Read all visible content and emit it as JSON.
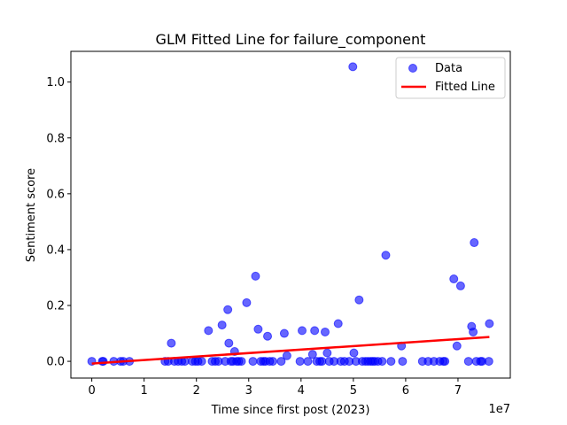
{
  "chart_data": {
    "type": "scatter",
    "title": "GLM Fitted Line for failure_component",
    "xlabel": "Time since first post (2023)",
    "ylabel": "Sentiment score",
    "x_offset_label": "1e7",
    "xlim": [
      -4000000,
      80000000
    ],
    "ylim": [
      -0.06,
      1.11
    ],
    "x_ticks": [
      0,
      10000000,
      20000000,
      30000000,
      40000000,
      50000000,
      60000000,
      70000000
    ],
    "x_tick_labels": [
      "0",
      "1",
      "2",
      "3",
      "4",
      "5",
      "6",
      "7"
    ],
    "y_ticks": [
      0.0,
      0.2,
      0.4,
      0.6,
      0.8,
      1.0
    ],
    "y_tick_labels": [
      "0.0",
      "0.2",
      "0.4",
      "0.6",
      "0.8",
      "1.0"
    ],
    "grid": false,
    "legend_position": "top-right",
    "series": [
      {
        "name": "Data",
        "kind": "scatter",
        "color": "#0000ff",
        "points": [
          [
            0,
            0.0
          ],
          [
            2000000,
            0.0
          ],
          [
            2200000,
            0.0
          ],
          [
            4200000,
            0.0
          ],
          [
            5500000,
            0.0
          ],
          [
            6000000,
            0.0
          ],
          [
            7200000,
            0.0
          ],
          [
            14000000,
            0.0
          ],
          [
            14600000,
            0.0
          ],
          [
            15200000,
            0.065
          ],
          [
            15800000,
            0.0
          ],
          [
            16500000,
            0.0
          ],
          [
            17200000,
            0.0
          ],
          [
            17800000,
            0.0
          ],
          [
            19200000,
            0.0
          ],
          [
            19800000,
            0.0
          ],
          [
            20300000,
            0.0
          ],
          [
            21000000,
            0.0
          ],
          [
            22300000,
            0.11
          ],
          [
            23000000,
            0.0
          ],
          [
            23600000,
            0.0
          ],
          [
            24200000,
            0.0
          ],
          [
            24900000,
            0.13
          ],
          [
            25500000,
            0.0
          ],
          [
            26000000,
            0.185
          ],
          [
            26200000,
            0.065
          ],
          [
            26600000,
            0.0
          ],
          [
            27000000,
            0.0
          ],
          [
            27300000,
            0.035
          ],
          [
            27700000,
            0.0
          ],
          [
            28100000,
            0.0
          ],
          [
            28600000,
            0.0
          ],
          [
            29600000,
            0.21
          ],
          [
            30800000,
            0.0
          ],
          [
            31300000,
            0.305
          ],
          [
            31800000,
            0.115
          ],
          [
            32300000,
            0.0
          ],
          [
            32800000,
            0.0
          ],
          [
            33200000,
            0.0
          ],
          [
            33600000,
            0.09
          ],
          [
            34000000,
            0.0
          ],
          [
            34600000,
            0.0
          ],
          [
            36200000,
            0.0
          ],
          [
            36800000,
            0.1
          ],
          [
            37300000,
            0.02
          ],
          [
            39800000,
            0.0
          ],
          [
            40200000,
            0.11
          ],
          [
            41300000,
            0.0
          ],
          [
            42200000,
            0.025
          ],
          [
            42600000,
            0.11
          ],
          [
            43000000,
            0.0
          ],
          [
            43600000,
            0.0
          ],
          [
            44000000,
            0.0
          ],
          [
            44600000,
            0.105
          ],
          [
            45000000,
            0.03
          ],
          [
            45400000,
            0.0
          ],
          [
            46300000,
            0.0
          ],
          [
            47100000,
            0.135
          ],
          [
            47600000,
            0.0
          ],
          [
            48300000,
            0.0
          ],
          [
            49200000,
            0.0
          ],
          [
            49900000,
            1.055
          ],
          [
            50100000,
            0.03
          ],
          [
            50500000,
            0.0
          ],
          [
            51100000,
            0.22
          ],
          [
            51700000,
            0.0
          ],
          [
            52300000,
            0.0
          ],
          [
            52800000,
            0.0
          ],
          [
            53300000,
            0.0
          ],
          [
            53700000,
            0.0
          ],
          [
            54100000,
            0.0
          ],
          [
            54700000,
            0.0
          ],
          [
            55500000,
            0.0
          ],
          [
            56200000,
            0.38
          ],
          [
            57200000,
            0.0
          ],
          [
            59200000,
            0.055
          ],
          [
            59400000,
            0.0
          ],
          [
            63200000,
            0.0
          ],
          [
            64300000,
            0.0
          ],
          [
            65400000,
            0.0
          ],
          [
            66500000,
            0.0
          ],
          [
            67200000,
            0.0
          ],
          [
            67500000,
            0.0
          ],
          [
            69200000,
            0.295
          ],
          [
            69800000,
            0.055
          ],
          [
            70500000,
            0.27
          ],
          [
            72000000,
            0.0
          ],
          [
            72600000,
            0.125
          ],
          [
            72900000,
            0.105
          ],
          [
            73100000,
            0.425
          ],
          [
            73500000,
            0.0
          ],
          [
            74300000,
            0.0
          ],
          [
            74600000,
            0.0
          ],
          [
            75900000,
            0.0
          ],
          [
            76000000,
            0.135
          ]
        ]
      },
      {
        "name": "Fitted Line",
        "kind": "line",
        "color": "#ff0000",
        "points": [
          [
            0,
            -0.008
          ],
          [
            76000000,
            0.087
          ]
        ]
      }
    ]
  }
}
